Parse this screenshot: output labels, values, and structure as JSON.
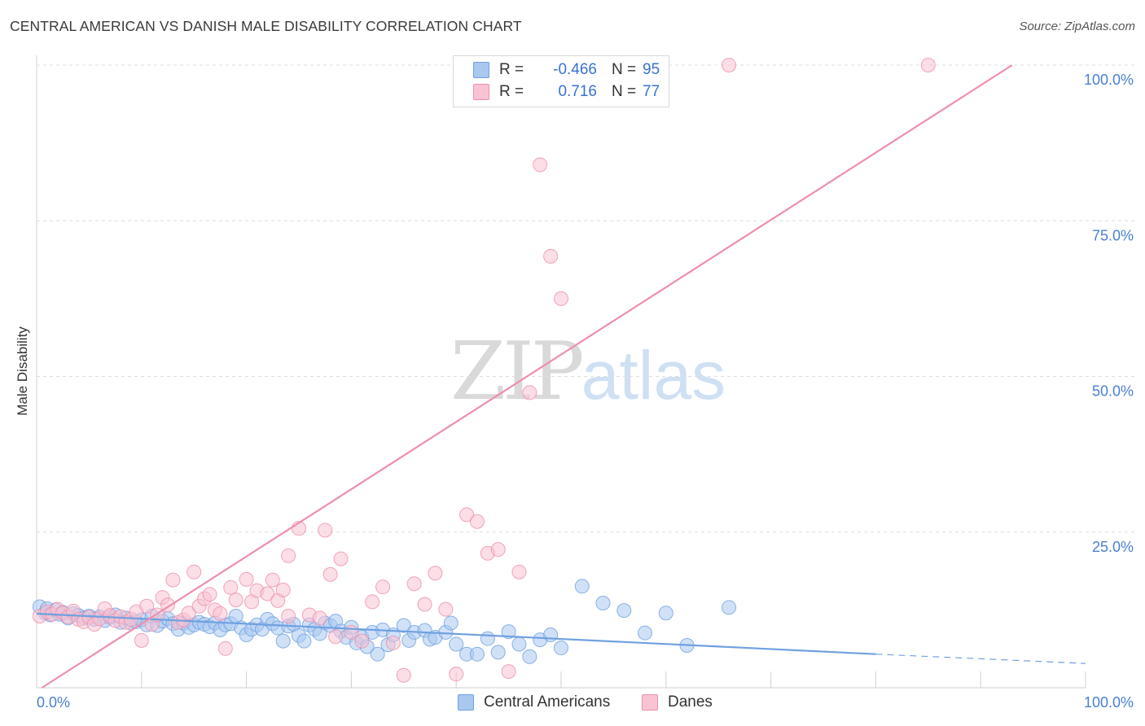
{
  "header": {
    "title": "CENTRAL AMERICAN VS DANISH MALE DISABILITY CORRELATION CHART",
    "source": "Source: ZipAtlas.com"
  },
  "watermark": {
    "zip": "ZIP",
    "atlas": "atlas"
  },
  "legend": {
    "rows": [
      {
        "r_label": "R =",
        "r_value": "-0.466",
        "n_label": "N =",
        "n_value": "95",
        "color": "#a9c8f0",
        "border": "#6fa0e0"
      },
      {
        "r_label": "R =",
        "r_value": "0.716",
        "n_label": "N =",
        "n_value": "77",
        "color": "#f9c3d3",
        "border": "#ee8fab"
      }
    ]
  },
  "bottom_legend": [
    {
      "label": "Central Americans",
      "color": "#a9c8f0",
      "border": "#6fa0e0"
    },
    {
      "label": "Danes",
      "color": "#f9c3d3",
      "border": "#ee8fab"
    }
  ],
  "chart_data": {
    "type": "scatter",
    "title": "CENTRAL AMERICAN VS DANISH MALE DISABILITY CORRELATION CHART",
    "xlabel": "",
    "ylabel": "Male Disability",
    "xlim": [
      0,
      100
    ],
    "ylim": [
      0,
      100
    ],
    "x_tick_labels": [
      "0.0%",
      "100.0%"
    ],
    "y_ticks": [
      25,
      50,
      75,
      100
    ],
    "y_tick_labels": [
      "25.0%",
      "50.0%",
      "75.0%",
      "100.0%"
    ],
    "grid": true,
    "series": [
      {
        "name": "Central Americans",
        "color": "#6fa0e0",
        "fill": "#a9c8f0",
        "regression": {
          "x0": 0,
          "y0": 11.9,
          "x1": 80,
          "y1": 5.4,
          "dash_to_x": 100,
          "dash_to_y": 3.9
        },
        "points": [
          [
            0.3,
            13
          ],
          [
            0.8,
            12
          ],
          [
            1,
            12.7
          ],
          [
            1.3,
            11.7
          ],
          [
            1.8,
            12.5
          ],
          [
            2.2,
            11.8
          ],
          [
            2.5,
            12.1
          ],
          [
            3,
            11.2
          ],
          [
            3.5,
            11.9
          ],
          [
            4,
            11.6
          ],
          [
            4.5,
            11.2
          ],
          [
            5,
            11.5
          ],
          [
            5.5,
            11.0
          ],
          [
            6,
            11.4
          ],
          [
            6.5,
            10.8
          ],
          [
            7,
            11.3
          ],
          [
            7.5,
            11.7
          ],
          [
            8,
            10.5
          ],
          [
            8.5,
            11.2
          ],
          [
            9,
            10.4
          ],
          [
            9.5,
            10.6
          ],
          [
            10,
            10.9
          ],
          [
            10.5,
            10.1
          ],
          [
            11,
            11.5
          ],
          [
            11.5,
            10.0
          ],
          [
            12,
            10.7
          ],
          [
            12.5,
            11.1
          ],
          [
            13,
            10.3
          ],
          [
            13.5,
            9.4
          ],
          [
            14,
            10.4
          ],
          [
            14.5,
            9.7
          ],
          [
            15,
            10.1
          ],
          [
            15.5,
            10.5
          ],
          [
            16,
            10.2
          ],
          [
            16.5,
            9.8
          ],
          [
            17,
            10.4
          ],
          [
            17.5,
            9.3
          ],
          [
            18,
            10.1
          ],
          [
            18.5,
            10.3
          ],
          [
            19,
            11.5
          ],
          [
            19.5,
            9.6
          ],
          [
            20,
            8.5
          ],
          [
            20.5,
            9.4
          ],
          [
            21,
            10.1
          ],
          [
            21.5,
            9.4
          ],
          [
            22,
            11.0
          ],
          [
            22.5,
            10.3
          ],
          [
            23,
            9.6
          ],
          [
            23.5,
            7.5
          ],
          [
            24,
            9.9
          ],
          [
            24.5,
            10.2
          ],
          [
            25,
            8.4
          ],
          [
            25.5,
            7.5
          ],
          [
            26,
            10.1
          ],
          [
            26.5,
            9.4
          ],
          [
            27,
            8.7
          ],
          [
            27.5,
            10.4
          ],
          [
            28,
            10.0
          ],
          [
            28.5,
            10.7
          ],
          [
            29,
            9.1
          ],
          [
            29.5,
            8.1
          ],
          [
            30,
            9.7
          ],
          [
            30.5,
            7.2
          ],
          [
            31,
            8.1
          ],
          [
            31.5,
            6.6
          ],
          [
            32,
            8.9
          ],
          [
            32.5,
            5.4
          ],
          [
            33,
            9.3
          ],
          [
            33.5,
            6.9
          ],
          [
            34,
            8.5
          ],
          [
            35,
            10.0
          ],
          [
            35.5,
            7.6
          ],
          [
            36,
            8.9
          ],
          [
            37,
            9.2
          ],
          [
            37.5,
            7.8
          ],
          [
            38,
            8.1
          ],
          [
            39,
            8.9
          ],
          [
            39.5,
            10.4
          ],
          [
            40,
            7.0
          ],
          [
            41,
            5.4
          ],
          [
            42,
            5.4
          ],
          [
            43,
            7.9
          ],
          [
            44,
            5.7
          ],
          [
            45,
            9.0
          ],
          [
            46,
            7.0
          ],
          [
            47,
            5.0
          ],
          [
            48,
            7.7
          ],
          [
            49,
            8.5
          ],
          [
            50,
            6.4
          ],
          [
            52,
            16.3
          ],
          [
            54,
            13.6
          ],
          [
            56,
            12.4
          ],
          [
            58,
            8.8
          ],
          [
            60,
            12.0
          ],
          [
            62,
            6.8
          ],
          [
            66,
            12.9
          ]
        ]
      },
      {
        "name": "Danes",
        "color": "#ee8fab",
        "fill": "#f9c3d3",
        "regression": {
          "x0": 0.5,
          "y0": 0,
          "x1": 93,
          "y1": 100
        },
        "points": [
          [
            0.3,
            11.5
          ],
          [
            1,
            12.2
          ],
          [
            1.5,
            11.8
          ],
          [
            2,
            12.6
          ],
          [
            2.5,
            12.0
          ],
          [
            3,
            11.4
          ],
          [
            3.5,
            12.3
          ],
          [
            4,
            11.0
          ],
          [
            4.5,
            10.6
          ],
          [
            5,
            11.3
          ],
          [
            5.5,
            10.2
          ],
          [
            6,
            11.1
          ],
          [
            6.5,
            12.7
          ],
          [
            7,
            11.6
          ],
          [
            7.5,
            10.8
          ],
          [
            8,
            11.4
          ],
          [
            8.5,
            10.5
          ],
          [
            9,
            11.0
          ],
          [
            9.5,
            12.2
          ],
          [
            10,
            7.6
          ],
          [
            10.5,
            13.1
          ],
          [
            11,
            10.2
          ],
          [
            11.5,
            11.7
          ],
          [
            12,
            14.5
          ],
          [
            12.5,
            13.3
          ],
          [
            13,
            17.3
          ],
          [
            13.5,
            10.5
          ],
          [
            14,
            10.9
          ],
          [
            14.5,
            12.0
          ],
          [
            15,
            18.6
          ],
          [
            15.5,
            13.1
          ],
          [
            16,
            14.3
          ],
          [
            16.5,
            15.0
          ],
          [
            17,
            12.5
          ],
          [
            17.5,
            11.9
          ],
          [
            18,
            6.3
          ],
          [
            18.5,
            16.1
          ],
          [
            19,
            14.1
          ],
          [
            20,
            17.4
          ],
          [
            20.5,
            13.8
          ],
          [
            21,
            15.6
          ],
          [
            22,
            15.1
          ],
          [
            22.5,
            17.3
          ],
          [
            23,
            14.0
          ],
          [
            23.5,
            15.7
          ],
          [
            24,
            11.5
          ],
          [
            25,
            25.6
          ],
          [
            24,
            21.2
          ],
          [
            26,
            11.7
          ],
          [
            27,
            11.2
          ],
          [
            27.5,
            25.3
          ],
          [
            28,
            18.2
          ],
          [
            28.5,
            8.2
          ],
          [
            29,
            20.7
          ],
          [
            30,
            8.9
          ],
          [
            31,
            7.5
          ],
          [
            32,
            13.8
          ],
          [
            33,
            16.2
          ],
          [
            34,
            7.2
          ],
          [
            35,
            2.0
          ],
          [
            36,
            16.7
          ],
          [
            37,
            13.4
          ],
          [
            38,
            18.4
          ],
          [
            39,
            12.6
          ],
          [
            40,
            2.2
          ],
          [
            41,
            27.8
          ],
          [
            42,
            26.7
          ],
          [
            43,
            21.6
          ],
          [
            44,
            22.2
          ],
          [
            45,
            2.6
          ],
          [
            46,
            18.6
          ],
          [
            47,
            47.4
          ],
          [
            48,
            84.0
          ],
          [
            49,
            69.3
          ],
          [
            50,
            62.5
          ],
          [
            66,
            100
          ],
          [
            85,
            100
          ]
        ]
      }
    ]
  }
}
